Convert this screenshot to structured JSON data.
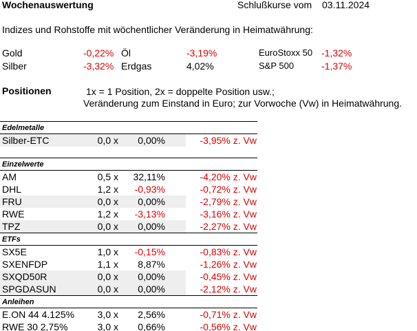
{
  "header": {
    "title": "Wochenauswertung",
    "date_label": "Schlußkurse vom",
    "date": "03.11.2024"
  },
  "intro": "Indizes und Rohstoffe mit wöchentlicher Veränderung in Heimatwährung:",
  "indices": [
    [
      {
        "name": "Gold",
        "change": "-0,22%"
      },
      {
        "name": "Öl",
        "change": "-3,19%"
      },
      {
        "name": "EuroStoxx 50",
        "change": "-1,32%"
      }
    ],
    [
      {
        "name": "Silber",
        "change": "-3,32%"
      },
      {
        "name": "Erdgas",
        "change": "4,02%"
      },
      {
        "name": "S&P 500",
        "change": "-1,37%"
      }
    ]
  ],
  "positions": {
    "label": "Positionen",
    "notes": [
      "1x = 1 Position, 2x = doppelte Position usw.;",
      "Veränderung zum Einstand in Euro; zur Vorwoche (Vw) in Heimatwährung."
    ]
  },
  "sections": [
    {
      "title": "Edelmetalle",
      "rows": [
        {
          "name": "Silber-ETC",
          "factor": "0,0 x",
          "change": "0,00%",
          "weekly": "-3,95% z. Vw",
          "shaded": true
        }
      ]
    },
    {
      "title": "Einzelwerte",
      "rows": [
        {
          "name": "AM",
          "factor": "0,5 x",
          "change": "32,11%",
          "weekly": "-4,20% z. Vw",
          "shaded": false
        },
        {
          "name": "DHL",
          "factor": "1,2 x",
          "change": "-0,93%",
          "weekly": "-0,72% z. Vw",
          "shaded": false
        },
        {
          "name": "FRU",
          "factor": "0,0 x",
          "change": "0,00%",
          "weekly": "-2,79% z. Vw",
          "shaded": true
        },
        {
          "name": "RWE",
          "factor": "1,2 x",
          "change": "-3,13%",
          "weekly": "-3,16% z. Vw",
          "shaded": false
        },
        {
          "name": "TPZ",
          "factor": "0,0 x",
          "change": "0,00%",
          "weekly": "-2,27% z. Vw",
          "shaded": true
        }
      ]
    },
    {
      "title": "ETFs",
      "rows": [
        {
          "name": "SX5E",
          "factor": "1,0 x",
          "change": "-0,15%",
          "weekly": "-0,83% z. Vw",
          "shaded": false
        },
        {
          "name": "SXENFDP",
          "factor": "1,1 x",
          "change": "8,87%",
          "weekly": "-1,26% z. Vw",
          "shaded": false
        },
        {
          "name": "SXQD50R",
          "factor": "0,0 x",
          "change": "0,00%",
          "weekly": "-0,45% z. Vw",
          "shaded": true
        },
        {
          "name": "SPGDASUN",
          "factor": "0,0 x",
          "change": "0,00%",
          "weekly": "-2,12% z. Vw",
          "shaded": true
        }
      ]
    },
    {
      "title": "Anleihen",
      "rows": [
        {
          "name": "E.ON 44 4.125%",
          "factor": "3,0 x",
          "change": "2,56%",
          "weekly": "-0,71% z. Vw",
          "shaded": false
        },
        {
          "name": "RWE 30 2,75%",
          "factor": "3,0 x",
          "change": "0,66%",
          "weekly": "-0,56% z. Vw",
          "shaded": false
        }
      ]
    }
  ]
}
